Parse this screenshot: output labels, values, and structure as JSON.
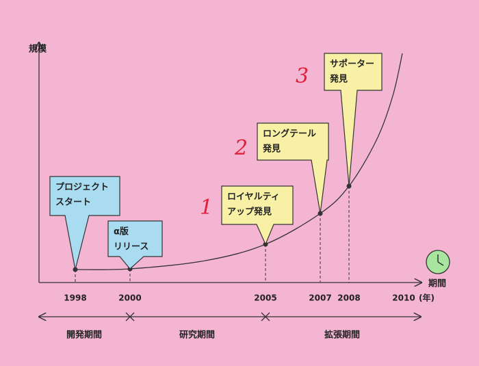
{
  "axes": {
    "y_label": "規模",
    "x_label": "期間",
    "x_unit": "(年)"
  },
  "years": [
    "1998",
    "2000",
    "2005",
    "2007",
    "2008",
    "2010"
  ],
  "callouts": [
    {
      "lines": [
        "プロジェクト",
        "スタート"
      ]
    },
    {
      "lines": [
        "α版",
        "リリース"
      ]
    },
    {
      "lines": [
        "ロイヤルティ",
        "アップ発見"
      ]
    },
    {
      "lines": [
        "ロングテール",
        "発見"
      ]
    },
    {
      "lines": [
        "サポーター",
        "発見"
      ]
    }
  ],
  "steps": [
    "1",
    "2",
    "3"
  ],
  "periods": [
    "開発期間",
    "研究期間",
    "拡張期間"
  ]
}
